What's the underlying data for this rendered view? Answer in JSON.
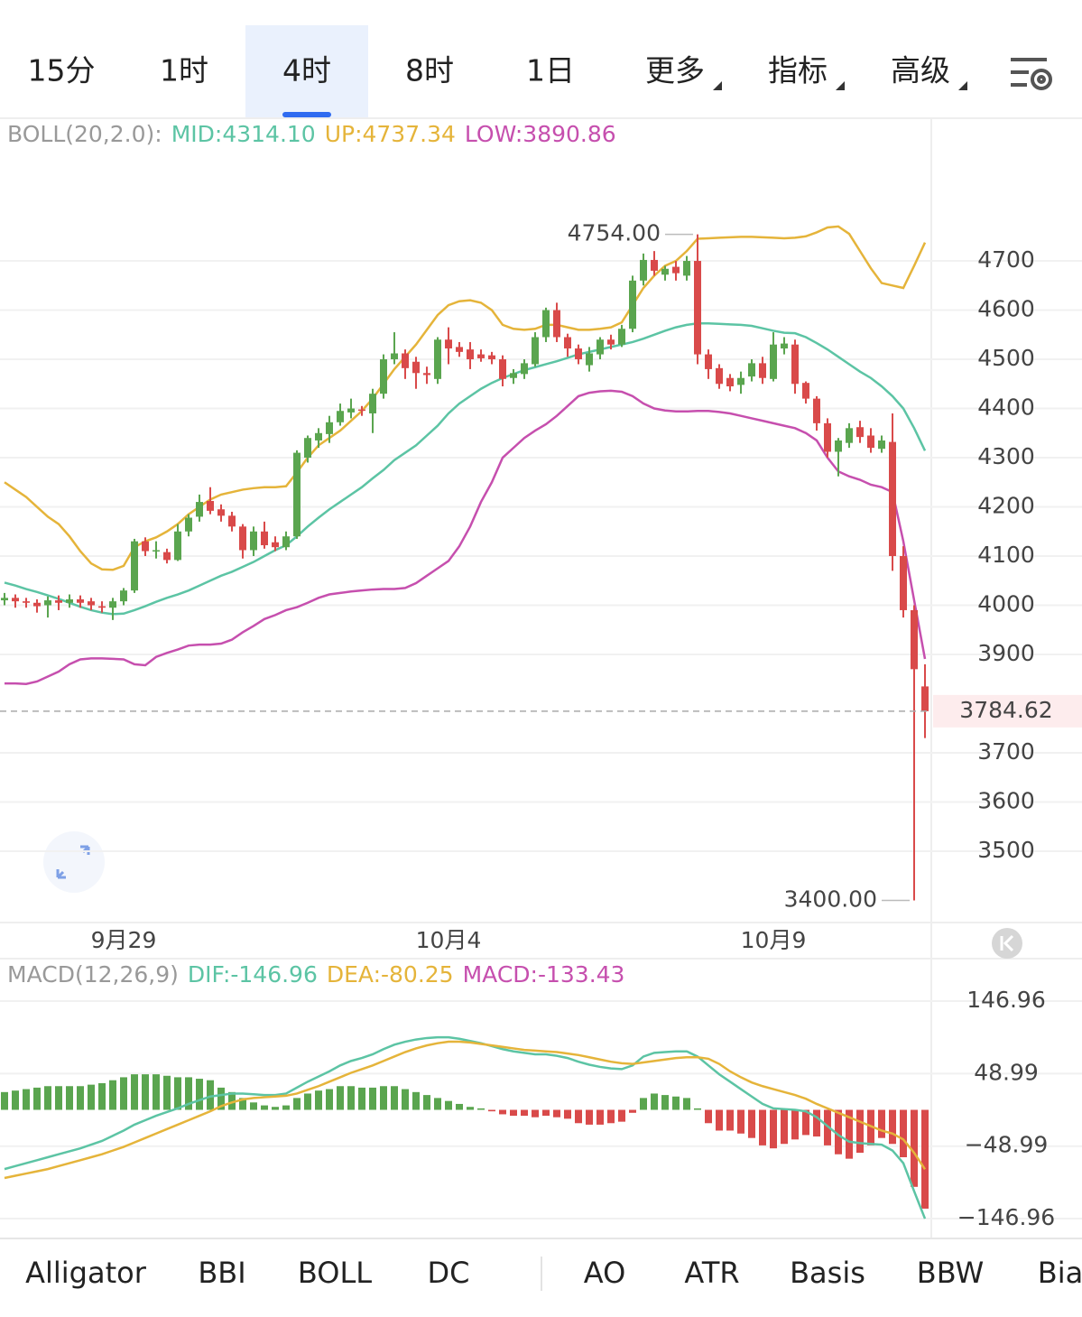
{
  "tabs": {
    "items": [
      {
        "label": "15分"
      },
      {
        "label": "1时"
      },
      {
        "label": "4时"
      },
      {
        "label": "8时"
      },
      {
        "label": "1日"
      },
      {
        "label": "更多",
        "dropdown": true
      },
      {
        "label": "指标",
        "dropdown": true
      },
      {
        "label": "高级",
        "dropdown": true
      }
    ],
    "selected": 2
  },
  "indicators": {
    "items": [
      "Alligator",
      "BBI",
      "BOLL",
      "DC",
      "AO",
      "ATR",
      "Basis",
      "BBW",
      "Bia"
    ],
    "selected": 2,
    "separator_after": 3
  },
  "chart_data": [
    {
      "type": "candlestick",
      "header": "BOLL(20,2.0):",
      "categories": [
        null,
        null,
        null,
        null,
        null,
        null,
        null,
        null,
        null,
        null,
        null,
        "9月29",
        null,
        null,
        null,
        null,
        null,
        null,
        null,
        null,
        null,
        null,
        null,
        null,
        null,
        null,
        null,
        null,
        null,
        null,
        null,
        null,
        null,
        null,
        null,
        null,
        null,
        null,
        null,
        null,
        null,
        "10月4",
        null,
        null,
        null,
        null,
        null,
        null,
        null,
        null,
        null,
        null,
        null,
        null,
        null,
        null,
        null,
        null,
        null,
        null,
        null,
        null,
        null,
        null,
        null,
        null,
        null,
        null,
        null,
        null,
        null,
        "10月9",
        null,
        null,
        null,
        null,
        null,
        null,
        null,
        null,
        null,
        null,
        null,
        null,
        null,
        null
      ],
      "open": [
        4010,
        4015,
        4008,
        4005,
        4000,
        4010,
        4005,
        4012,
        4008,
        3998,
        3995,
        4008,
        4030,
        4130,
        4110,
        4108,
        4092,
        4150,
        4180,
        4212,
        4195,
        4182,
        4160,
        4112,
        4150,
        4128,
        4118,
        4140,
        4300,
        4335,
        4348,
        4372,
        4392,
        4398,
        4390,
        4430,
        4500,
        4512,
        4495,
        4472,
        4460,
        4540,
        4525,
        4520,
        4510,
        4508,
        4500,
        4462,
        4470,
        4490,
        4545,
        4600,
        4545,
        4522,
        4488,
        4510,
        4540,
        4530,
        4562,
        4660,
        4702,
        4672,
        4688,
        4670,
        4700,
        4510,
        4482,
        4462,
        4448,
        4465,
        4492,
        4460,
        4522,
        4530,
        4452,
        4420,
        4370,
        4312,
        4330,
        4362,
        4345,
        4318,
        4332,
        4100,
        3990,
        3835
      ],
      "high": [
        4025,
        4022,
        4015,
        4012,
        4018,
        4020,
        4022,
        4020,
        4015,
        4008,
        4015,
        4035,
        4135,
        4138,
        4130,
        4115,
        4165,
        4185,
        4225,
        4240,
        4205,
        4190,
        4165,
        4160,
        4170,
        4140,
        4150,
        4315,
        4345,
        4360,
        4385,
        4410,
        4420,
        4405,
        4440,
        4510,
        4555,
        4520,
        4505,
        4485,
        4545,
        4565,
        4535,
        4535,
        4520,
        4515,
        4508,
        4480,
        4500,
        4555,
        4605,
        4615,
        4552,
        4530,
        4525,
        4545,
        4550,
        4570,
        4670,
        4715,
        4720,
        4690,
        4700,
        4710,
        4754,
        4520,
        4490,
        4470,
        4475,
        4500,
        4505,
        4555,
        4545,
        4540,
        4455,
        4425,
        4380,
        4340,
        4370,
        4375,
        4360,
        4345,
        4390,
        4120,
        4000,
        3880
      ],
      "low": [
        4000,
        3995,
        3995,
        3985,
        3975,
        3990,
        3995,
        3995,
        3990,
        3985,
        3970,
        4000,
        4025,
        4100,
        4095,
        4085,
        4090,
        4140,
        4170,
        4185,
        4170,
        4150,
        4095,
        4100,
        4115,
        4110,
        4112,
        4135,
        4290,
        4320,
        4330,
        4365,
        4380,
        4385,
        4350,
        4420,
        4490,
        4460,
        4440,
        4450,
        4450,
        4490,
        4505,
        4480,
        4495,
        4490,
        4445,
        4450,
        4460,
        4485,
        4535,
        4535,
        4505,
        4490,
        4475,
        4500,
        4520,
        4525,
        4555,
        4650,
        4670,
        4660,
        4660,
        4660,
        4490,
        4460,
        4440,
        4435,
        4430,
        4455,
        4450,
        4455,
        4510,
        4430,
        4410,
        4355,
        4300,
        4262,
        4320,
        4330,
        4310,
        4310,
        4070,
        3975,
        3400,
        3730
      ],
      "close": [
        4015,
        4008,
        4005,
        3998,
        4010,
        4005,
        4012,
        4005,
        4000,
        3995,
        4008,
        4030,
        4130,
        4110,
        4112,
        4092,
        4150,
        4178,
        4210,
        4192,
        4182,
        4160,
        4112,
        4150,
        4122,
        4118,
        4140,
        4310,
        4340,
        4350,
        4372,
        4395,
        4400,
        4396,
        4430,
        4500,
        4512,
        4482,
        4472,
        4468,
        4540,
        4522,
        4515,
        4500,
        4502,
        4500,
        4460,
        4472,
        4492,
        4545,
        4600,
        4545,
        4522,
        4500,
        4512,
        4540,
        4530,
        4562,
        4660,
        4702,
        4680,
        4684,
        4675,
        4700,
        4510,
        4480,
        4450,
        4445,
        4462,
        4492,
        4462,
        4530,
        4532,
        4450,
        4420,
        4370,
        4312,
        4335,
        4360,
        4342,
        4320,
        4335,
        4100,
        3990,
        3870,
        3784.62
      ],
      "up_color": "#5aa54f",
      "down_color": "#d94a4a",
      "series": [
        {
          "label": "MID:4314.10",
          "color": "#5cc4a4",
          "values": [
            4046,
            4040,
            4033,
            4027,
            4020,
            4013,
            4005,
            3997,
            3990,
            3985,
            3982,
            3983,
            3990,
            3998,
            4007,
            4015,
            4022,
            4030,
            4040,
            4050,
            4060,
            4068,
            4078,
            4088,
            4100,
            4112,
            4122,
            4140,
            4160,
            4178,
            4195,
            4210,
            4225,
            4240,
            4258,
            4275,
            4295,
            4310,
            4325,
            4345,
            4365,
            4390,
            4410,
            4425,
            4440,
            4452,
            4462,
            4470,
            4478,
            4484,
            4490,
            4496,
            4503,
            4510,
            4515,
            4520,
            4525,
            4530,
            4535,
            4542,
            4550,
            4558,
            4565,
            4570,
            4573,
            4573,
            4572,
            4571,
            4570,
            4568,
            4563,
            4558,
            4554,
            4553,
            4545,
            4533,
            4520,
            4505,
            4490,
            4475,
            4462,
            4445,
            4425,
            4400,
            4360,
            4314.1
          ]
        },
        {
          "label": "UP:4737.34",
          "color": "#e5b43a",
          "values": [
            4250,
            4235,
            4220,
            4200,
            4180,
            4165,
            4140,
            4110,
            4085,
            4073,
            4072,
            4080,
            4118,
            4130,
            4138,
            4150,
            4165,
            4185,
            4200,
            4215,
            4225,
            4230,
            4235,
            4238,
            4240,
            4240,
            4242,
            4270,
            4300,
            4325,
            4340,
            4355,
            4375,
            4395,
            4420,
            4450,
            4480,
            4505,
            4530,
            4560,
            4590,
            4610,
            4618,
            4620,
            4615,
            4600,
            4570,
            4562,
            4560,
            4562,
            4570,
            4570,
            4565,
            4560,
            4560,
            4562,
            4565,
            4575,
            4610,
            4645,
            4670,
            4690,
            4700,
            4720,
            4745,
            4746,
            4747,
            4748,
            4749,
            4749,
            4748,
            4747,
            4746,
            4747,
            4750,
            4758,
            4768,
            4770,
            4755,
            4720,
            4685,
            4655,
            4650,
            4645,
            4690,
            4737.34
          ]
        },
        {
          "label": "LOW:3890.86",
          "color": "#c64fae",
          "values": [
            3841,
            3841,
            3840,
            3845,
            3855,
            3865,
            3880,
            3890,
            3892,
            3892,
            3891,
            3890,
            3880,
            3878,
            3895,
            3903,
            3910,
            3918,
            3920,
            3920,
            3922,
            3930,
            3945,
            3958,
            3972,
            3980,
            3990,
            3996,
            4005,
            4015,
            4022,
            4025,
            4028,
            4030,
            4032,
            4033,
            4033,
            4035,
            4045,
            4060,
            4075,
            4090,
            4120,
            4160,
            4210,
            4250,
            4300,
            4320,
            4340,
            4355,
            4368,
            4385,
            4405,
            4425,
            4432,
            4435,
            4436,
            4434,
            4425,
            4410,
            4400,
            4396,
            4394,
            4394,
            4395,
            4395,
            4393,
            4390,
            4385,
            4380,
            4375,
            4370,
            4365,
            4360,
            4350,
            4335,
            4300,
            4272,
            4262,
            4255,
            4245,
            4240,
            4230,
            4130,
            4010,
            3890.86
          ]
        }
      ],
      "ylim": [
        3355,
        4990
      ],
      "yticks": [
        4700,
        4600,
        4500,
        4400,
        4300,
        4200,
        4100,
        4000,
        3900,
        3700,
        3600,
        3500
      ],
      "grid": true,
      "annotations": [
        {
          "value": 4754,
          "label": "4754.00"
        },
        {
          "value": 3400,
          "label": "3400.00"
        }
      ],
      "last_price": 3784.62
    },
    {
      "type": "macd",
      "header": "MACD(12,26,9)",
      "series": [
        {
          "label": "DIF:-146.96",
          "color": "#5cc4a4",
          "values": [
            -80,
            -76,
            -72,
            -68,
            -64,
            -60,
            -56,
            -52,
            -47,
            -42,
            -35,
            -28,
            -20,
            -14,
            -8,
            -3,
            2,
            8,
            13,
            18,
            20,
            22,
            22,
            21,
            20,
            20,
            22,
            30,
            38,
            45,
            52,
            60,
            66,
            70,
            75,
            82,
            88,
            92,
            95,
            97,
            98,
            98,
            96,
            93,
            90,
            86,
            82,
            79,
            77,
            75,
            75,
            73,
            70,
            65,
            61,
            58,
            56,
            55,
            60,
            72,
            77,
            78,
            79,
            79,
            72,
            60,
            48,
            38,
            28,
            18,
            8,
            2,
            1,
            0,
            -2,
            -10,
            -22,
            -34,
            -43,
            -45,
            -46,
            -47,
            -55,
            -72,
            -110,
            -146.96
          ]
        },
        {
          "label": "DEA:-80.25",
          "color": "#e5b43a",
          "values": [
            -92,
            -89,
            -86,
            -83,
            -80,
            -76,
            -72,
            -68,
            -64,
            -60,
            -55,
            -50,
            -44,
            -38,
            -32,
            -26,
            -20,
            -14,
            -8,
            -2,
            5,
            10,
            14,
            16,
            17,
            18,
            19,
            22,
            27,
            32,
            38,
            44,
            50,
            55,
            60,
            66,
            72,
            78,
            83,
            87,
            90,
            92,
            92,
            91,
            89,
            87,
            85,
            83,
            81,
            80,
            79,
            78,
            76,
            74,
            71,
            68,
            65,
            63,
            62,
            64,
            66,
            68,
            70,
            71,
            71,
            69,
            62,
            52,
            44,
            37,
            32,
            28,
            24,
            20,
            15,
            8,
            2,
            -4,
            -10,
            -16,
            -22,
            -28,
            -32,
            -40,
            -58,
            -80.25
          ]
        }
      ],
      "histogram": {
        "label": "MACD:-133.43",
        "color": "#c64fae",
        "up_color": "#5aa54f",
        "down_color": "#d94a4a",
        "values": [
          24,
          26,
          28,
          30,
          32,
          32,
          32,
          32,
          34,
          36,
          40,
          44,
          48,
          48,
          48,
          46,
          44,
          44,
          42,
          40,
          30,
          24,
          16,
          10,
          6,
          4,
          6,
          16,
          22,
          26,
          28,
          32,
          32,
          30,
          30,
          32,
          32,
          28,
          24,
          20,
          16,
          12,
          8,
          4,
          2,
          -2,
          -6,
          -8,
          -8,
          -10,
          -8,
          -10,
          -12,
          -18,
          -20,
          -20,
          -18,
          -16,
          -4,
          16,
          22,
          20,
          18,
          16,
          2,
          -18,
          -28,
          -28,
          -32,
          -38,
          -48,
          -52,
          -46,
          -40,
          -34,
          -36,
          -48,
          -60,
          -66,
          -58,
          -48,
          -38,
          -46,
          -64,
          -104,
          -133.43
        ]
      },
      "ylim": [
        -172.5,
        203
      ],
      "yticks": [
        146.96,
        48.99,
        {
          "value": -48.99,
          "label": "−48.99"
        },
        {
          "value": -146.96,
          "label": "−146.96"
        }
      ],
      "grid": true
    }
  ]
}
